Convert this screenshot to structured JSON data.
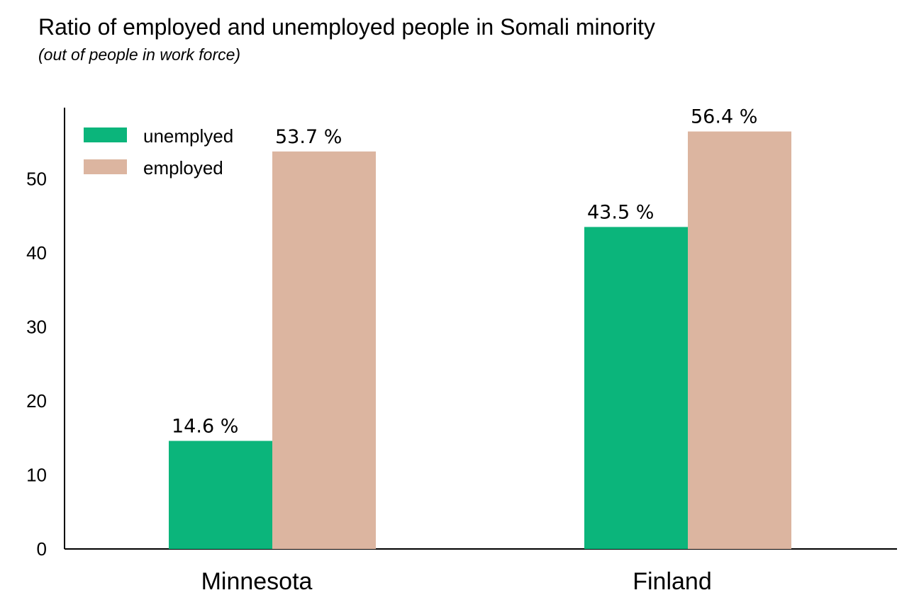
{
  "header": {
    "title": "Ratio of employed and unemployed people in Somali minority",
    "subtitle": "(out of people in work force)"
  },
  "chart_data": {
    "type": "bar",
    "title": "Ratio of employed and unemployed people in Somali minority",
    "subtitle": "(out of people in work force)",
    "categories": [
      "Minnesota",
      "Finland"
    ],
    "series": [
      {
        "name": "unemplyed",
        "color": "#0bb57b",
        "values": [
          14.6,
          43.5
        ],
        "labels": [
          "14.6 %",
          "43.5 %"
        ]
      },
      {
        "name": "employed",
        "color": "#dcb5a0",
        "values": [
          53.7,
          56.4
        ],
        "labels": [
          "53.7 %",
          "56.4 %"
        ]
      }
    ],
    "yticks": [
      0,
      10,
      20,
      30,
      40,
      50
    ],
    "ylim": [
      0,
      59
    ],
    "xlabel": "",
    "ylabel": "",
    "grid": false,
    "legend_position": "top-left"
  }
}
